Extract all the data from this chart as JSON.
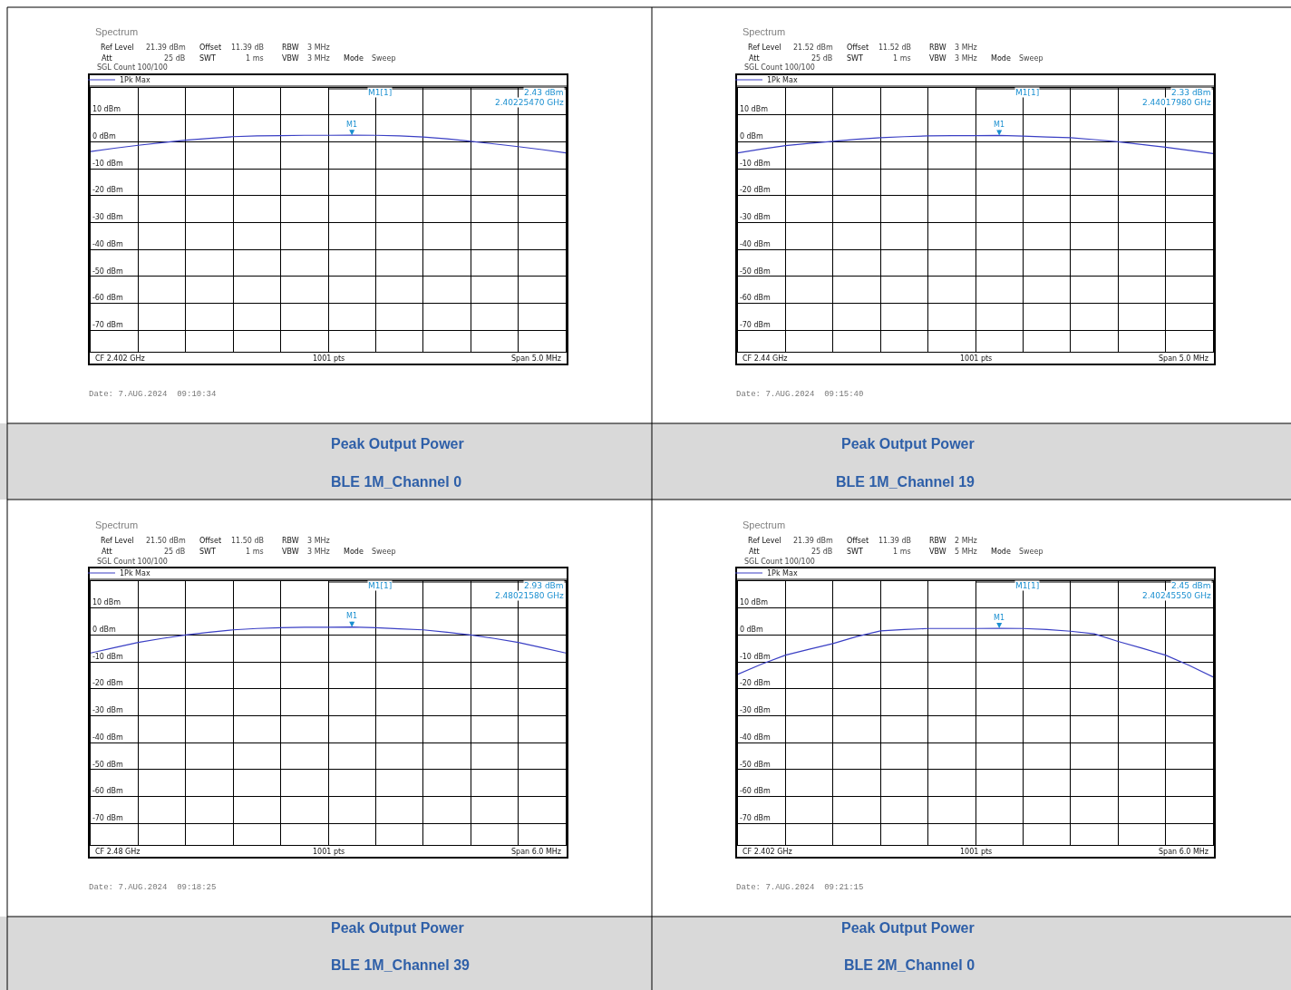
{
  "chart_data": [
    {
      "type": "line",
      "title": "Peak Output Power",
      "subtitle": "BLE 1M_Channel 0",
      "categories": [
        null,
        null,
        null,
        null,
        null,
        null,
        null,
        null,
        null,
        null,
        null,
        null,
        null,
        null,
        null,
        null,
        null,
        null,
        null,
        null,
        null
      ],
      "series": [
        {
          "name": "1Pk Max",
          "color": "#3a3fc4",
          "values": [
            -3.6,
            -2.4,
            -1.3,
            -0.3,
            0.6,
            1.3,
            1.9,
            2.2,
            2.3,
            2.4,
            2.4,
            2.43,
            2.4,
            2.2,
            1.8,
            1.1,
            0.2,
            -0.8,
            -1.8,
            -2.9,
            -4.1
          ]
        }
      ],
      "ylim": [
        -78,
        20
      ],
      "yticks": [
        {
          "value": 10,
          "label": "10 dBm"
        },
        {
          "value": 0,
          "label": "0 dBm"
        },
        {
          "value": -10,
          "label": "-10 dBm"
        },
        {
          "value": -20,
          "label": "-20 dBm"
        },
        {
          "value": -30,
          "label": "-30 dBm"
        },
        {
          "value": -40,
          "label": "-40 dBm"
        },
        {
          "value": -50,
          "label": "-50 dBm"
        },
        {
          "value": -60,
          "label": "-60 dBm"
        },
        {
          "value": -70,
          "label": "-70 dBm"
        }
      ],
      "grid": true,
      "legend": "top left",
      "annotations": [
        "Spectrum",
        "Ref Level",
        "21.39 dBm",
        "Offset",
        "11.39 dB",
        "RBW",
        "3 MHz",
        "Att",
        "25 dB",
        "SWT",
        "1 ms",
        "VBW",
        "3 MHz",
        "Mode",
        "Sweep",
        "SGL Count 100/100",
        "M1[1]",
        "2.43 dBm",
        "2.40225470 GHz",
        "CF 2.402 GHz",
        "1001 pts",
        "Span 5.0 MHz",
        "Date: 7.AUG.2024  09:10:34",
        {
          "text": "M1",
          "y": 2.43
        }
      ]
    },
    {
      "type": "line",
      "title": "Peak Output Power",
      "subtitle": "BLE 1M_Channel 19",
      "categories": [
        null,
        null,
        null,
        null,
        null,
        null,
        null,
        null,
        null,
        null,
        null,
        null,
        null,
        null,
        null,
        null,
        null,
        null,
        null,
        null,
        null
      ],
      "series": [
        {
          "name": "1Pk Max",
          "color": "#3a3fc4",
          "values": [
            -4.1,
            -2.7,
            -1.4,
            -0.6,
            0.2,
            0.9,
            1.5,
            1.9,
            2.2,
            2.3,
            2.3,
            2.33,
            2.1,
            1.8,
            1.5,
            0.8,
            0,
            -1,
            -2,
            -3.2,
            -4.4
          ]
        }
      ],
      "ylim": [
        -78,
        20
      ],
      "yticks": [
        {
          "value": 10,
          "label": "10 dBm"
        },
        {
          "value": 0,
          "label": "0 dBm"
        },
        {
          "value": -10,
          "label": "-10 dBm"
        },
        {
          "value": -20,
          "label": "-20 dBm"
        },
        {
          "value": -30,
          "label": "-30 dBm"
        },
        {
          "value": -40,
          "label": "-40 dBm"
        },
        {
          "value": -50,
          "label": "-50 dBm"
        },
        {
          "value": -60,
          "label": "-60 dBm"
        },
        {
          "value": -70,
          "label": "-70 dBm"
        }
      ],
      "grid": true,
      "legend": "top left",
      "annotations": [
        "Spectrum",
        "Ref Level",
        "21.52 dBm",
        "Offset",
        "11.52 dB",
        "RBW",
        "3 MHz",
        "Att",
        "25 dB",
        "SWT",
        "1 ms",
        "VBW",
        "3 MHz",
        "Mode",
        "Sweep",
        "SGL Count 100/100",
        "M1[1]",
        "2.33 dBm",
        "2.44017980 GHz",
        "CF 2.44 GHz",
        "1001 pts",
        "Span 5.0 MHz",
        "Date: 7.AUG.2024  09:15:40",
        {
          "text": "M1",
          "y": 2.33
        }
      ]
    },
    {
      "type": "line",
      "title": "Peak Output Power",
      "subtitle": "BLE 1M_Channel 39",
      "categories": [
        null,
        null,
        null,
        null,
        null,
        null,
        null,
        null,
        null,
        null,
        null,
        null,
        null,
        null,
        null,
        null,
        null,
        null,
        null,
        null,
        null
      ],
      "series": [
        {
          "name": "1Pk Max",
          "color": "#3a3fc4",
          "values": [
            -6.7,
            -4.7,
            -2.8,
            -1.3,
            0,
            1.0,
            1.9,
            2.4,
            2.7,
            2.9,
            2.9,
            2.93,
            2.7,
            2.3,
            1.9,
            1.0,
            0,
            -1.3,
            -2.8,
            -4.7,
            -6.7
          ]
        }
      ],
      "ylim": [
        -78,
        20
      ],
      "yticks": [
        {
          "value": 10,
          "label": "10 dBm"
        },
        {
          "value": 0,
          "label": "0 dBm"
        },
        {
          "value": -10,
          "label": "-10 dBm"
        },
        {
          "value": -20,
          "label": "-20 dBm"
        },
        {
          "value": -30,
          "label": "-30 dBm"
        },
        {
          "value": -40,
          "label": "-40 dBm"
        },
        {
          "value": -50,
          "label": "-50 dBm"
        },
        {
          "value": -60,
          "label": "-60 dBm"
        },
        {
          "value": -70,
          "label": "-70 dBm"
        }
      ],
      "grid": true,
      "legend": "top left",
      "annotations": [
        "Spectrum",
        "Ref Level",
        "21.50 dBm",
        "Offset",
        "11.50 dB",
        "RBW",
        "3 MHz",
        "Att",
        "25 dB",
        "SWT",
        "1 ms",
        "VBW",
        "3 MHz",
        "Mode",
        "Sweep",
        "SGL Count 100/100",
        "M1[1]",
        "2.93 dBm",
        "2.48021580 GHz",
        "CF 2.48 GHz",
        "1001 pts",
        "Span 6.0 MHz",
        "Date: 7.AUG.2024  09:18:25",
        {
          "text": "M1",
          "y": 2.93
        }
      ]
    },
    {
      "type": "line",
      "title": "Peak Output Power",
      "subtitle": "BLE 2M_Channel 0",
      "categories": [
        null,
        null,
        null,
        null,
        null,
        null,
        null,
        null,
        null,
        null,
        null,
        null,
        null,
        null,
        null,
        null,
        null,
        null,
        null,
        null,
        null
      ],
      "series": [
        {
          "name": "1Pk Max",
          "color": "#3a3fc4",
          "values": [
            -14.6,
            -10.8,
            -7.5,
            -5.3,
            -3.2,
            -0.6,
            1.5,
            2.0,
            2.4,
            2.4,
            2.4,
            2.45,
            2.4,
            2.0,
            1.4,
            0.4,
            -2.4,
            -4.9,
            -7.5,
            -11.3,
            -15.6
          ]
        }
      ],
      "ylim": [
        -78,
        20
      ],
      "yticks": [
        {
          "value": 10,
          "label": "10 dBm"
        },
        {
          "value": 0,
          "label": "0 dBm"
        },
        {
          "value": -10,
          "label": "-10 dBm"
        },
        {
          "value": -20,
          "label": "-20 dBm"
        },
        {
          "value": -30,
          "label": "-30 dBm"
        },
        {
          "value": -40,
          "label": "-40 dBm"
        },
        {
          "value": -50,
          "label": "-50 dBm"
        },
        {
          "value": -60,
          "label": "-60 dBm"
        },
        {
          "value": -70,
          "label": "-70 dBm"
        }
      ],
      "grid": true,
      "legend": "top left",
      "annotations": [
        "Spectrum",
        "Ref Level",
        "21.39 dBm",
        "Offset",
        "11.39 dB",
        "RBW",
        "2 MHz",
        "Att",
        "25 dB",
        "SWT",
        "1 ms",
        "VBW",
        "5 MHz",
        "Mode",
        "Sweep",
        "SGL Count 100/100",
        "M1[1]",
        "2.45 dBm",
        "2.40245550 GHz",
        "CF 2.402 GHz",
        "1001 pts",
        "Span 6.0 MHz",
        "Date: 7.AUG.2024  09:21:15",
        {
          "text": "M1",
          "y": 2.45
        }
      ]
    }
  ]
}
